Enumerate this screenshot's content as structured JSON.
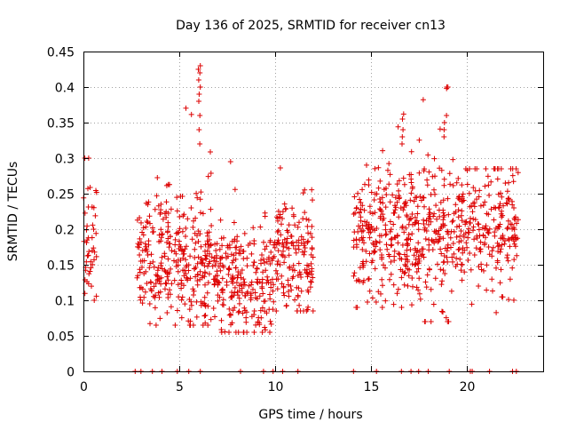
{
  "chart_data": {
    "type": "scatter",
    "title": "Day 136 of 2025, SRMTID for receiver cn13",
    "xlabel": "GPS time / hours",
    "ylabel": "SRMTID / TECUs",
    "xlim": [
      0,
      24.0
    ],
    "ylim": [
      0,
      0.45
    ],
    "grid": true,
    "marker": "+",
    "color": "#dd0000",
    "x_ticks": [
      0,
      5,
      10,
      15,
      20
    ],
    "y_ticks": [
      0,
      0.05,
      0.1,
      0.15,
      0.2,
      0.25,
      0.3,
      0.35,
      0.4,
      0.45
    ],
    "x_tick_labels": [
      "0",
      "5",
      "10",
      "15",
      "20"
    ],
    "y_tick_labels": [
      "0",
      "0.05",
      "0.1",
      "0.15",
      "0.2",
      "0.25",
      "0.3",
      "0.35",
      "0.4",
      "0.45"
    ],
    "series": [
      {
        "name": "SRMTID",
        "clusters": [
          {
            "x_range": [
              0.0,
              0.7
            ],
            "center": 0.18,
            "spread": 0.05,
            "min": 0.1,
            "max": 0.3,
            "count": 45
          },
          {
            "x_range": [
              2.8,
              5.3
            ],
            "center": 0.16,
            "spread": 0.045,
            "min": 0.065,
            "max": 0.28,
            "count": 200
          },
          {
            "x_range": [
              5.3,
              6.9
            ],
            "center": 0.14,
            "spread": 0.05,
            "min": 0.065,
            "max": 0.43,
            "count": 130
          },
          {
            "x_range": [
              6.9,
              9.9
            ],
            "center": 0.125,
            "spread": 0.04,
            "min": 0.055,
            "max": 0.295,
            "count": 230
          },
          {
            "x_range": [
              9.9,
              12.0
            ],
            "center": 0.16,
            "spread": 0.04,
            "min": 0.085,
            "max": 0.29,
            "count": 160
          },
          {
            "x_range": [
              14.1,
              17.0
            ],
            "center": 0.185,
            "spread": 0.045,
            "min": 0.09,
            "max": 0.36,
            "count": 230
          },
          {
            "x_range": [
              17.0,
              19.5
            ],
            "center": 0.195,
            "spread": 0.05,
            "min": 0.07,
            "max": 0.4,
            "count": 200
          },
          {
            "x_range": [
              19.5,
              22.7
            ],
            "center": 0.2,
            "spread": 0.04,
            "min": 0.075,
            "max": 0.285,
            "count": 230
          }
        ],
        "highlights": [
          {
            "x": 6.05,
            "values": [
              0.43,
              0.425,
              0.42,
              0.41,
              0.4,
              0.39,
              0.38,
              0.36,
              0.34,
              0.32
            ]
          },
          {
            "x": 18.9,
            "values": [
              0.398,
              0.36,
              0.35,
              0.34,
              0.33
            ]
          },
          {
            "x": 16.7,
            "values": [
              0.362,
              0.355,
              0.34,
              0.33,
              0.32
            ]
          }
        ],
        "zero_values_x": [
          2.7,
          3.0,
          3.6,
          4.1,
          4.9,
          5.5,
          6.1,
          8.2,
          9.4,
          9.9,
          10.4,
          11.2,
          14.1,
          15.3,
          16.6,
          17.1,
          17.5,
          18.0,
          19.1,
          20.2,
          20.3,
          21.2,
          22.4,
          22.6
        ]
      }
    ]
  }
}
